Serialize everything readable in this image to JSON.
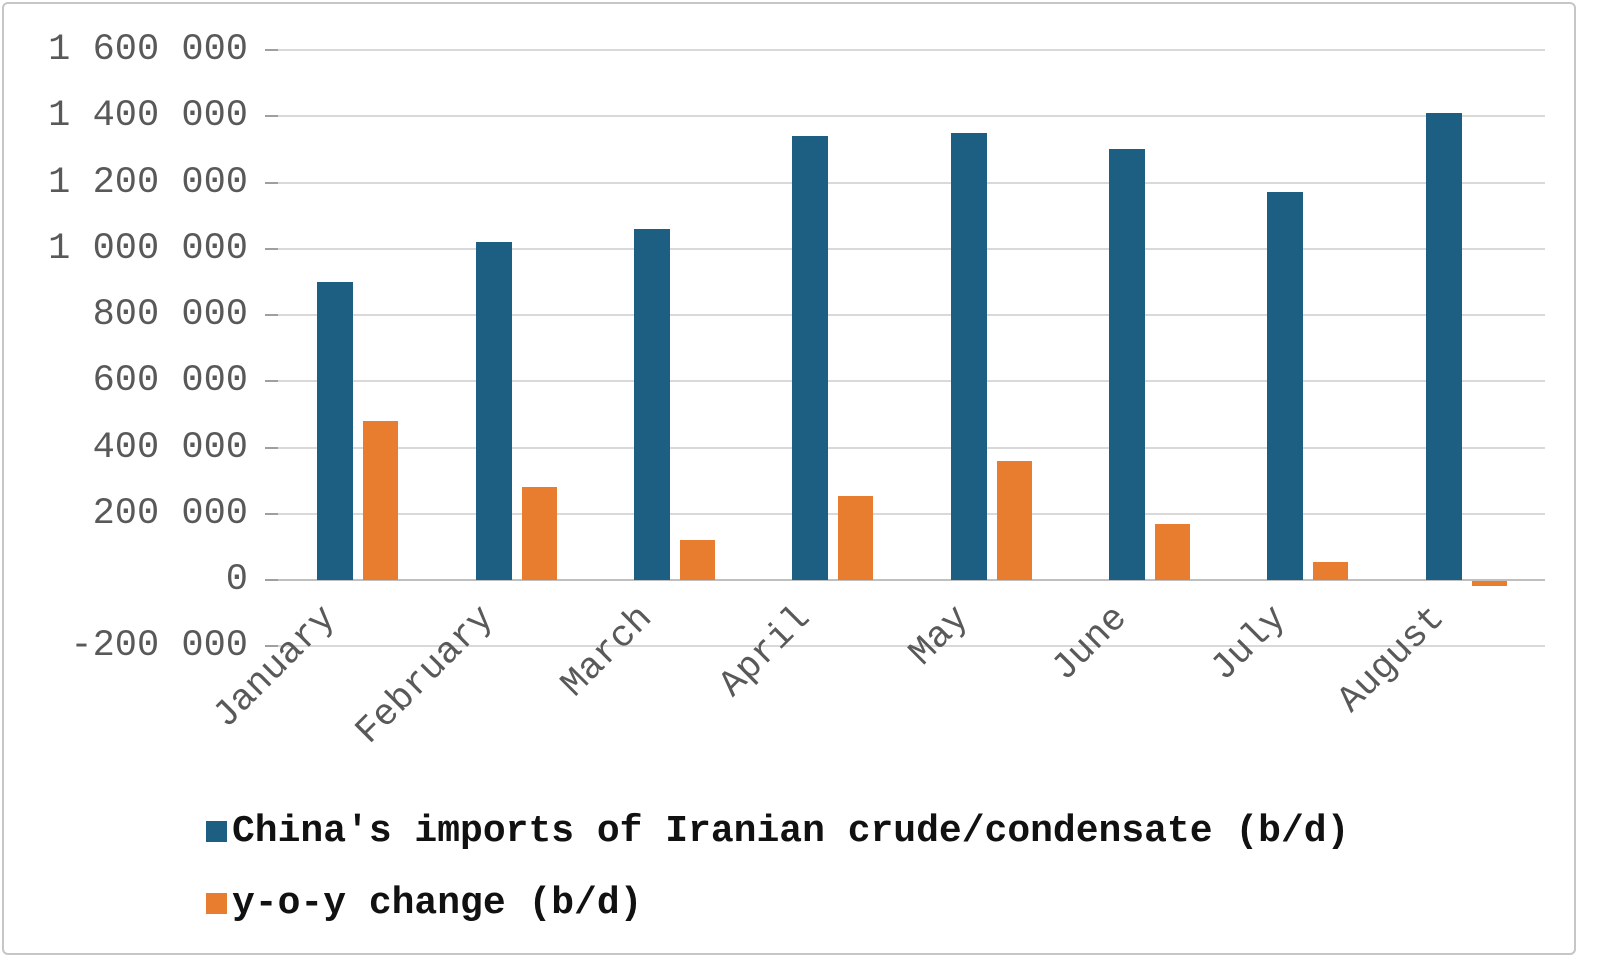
{
  "chart_data": {
    "type": "bar",
    "title": "",
    "xlabel": "",
    "ylabel": "",
    "categories": [
      "January",
      "February",
      "March",
      "April",
      "May",
      "June",
      "July",
      "August"
    ],
    "series": [
      {
        "name": "China's imports of Iranian crude/condensate (b/d)",
        "color": "#1d5f82",
        "values": [
          900000,
          1020000,
          1060000,
          1340000,
          1350000,
          1300000,
          1170000,
          1410000
        ]
      },
      {
        "name": "y-o-y change (b/d)",
        "color": "#e87d2f",
        "values": [
          480000,
          280000,
          120000,
          255000,
          360000,
          170000,
          55000,
          -15000
        ]
      }
    ],
    "ylim": [
      -200000,
      1600000
    ],
    "ytick_step": 200000,
    "ytick_labels": [
      "1 600 000",
      "1 400 000",
      "1 200 000",
      "1 000 000",
      "800 000",
      "600 000",
      "400 000",
      "200 000",
      "0",
      "-200 000"
    ],
    "ytick_values": [
      1600000,
      1400000,
      1200000,
      1000000,
      800000,
      600000,
      400000,
      200000,
      0,
      -200000
    ],
    "grid": true,
    "legend_position": "bottom-left"
  },
  "colors": {
    "gridline": "#d9d9d9",
    "zero_line": "#bfbfbf",
    "axis_text": "#595959",
    "legend_text": "#111111",
    "frame_border": "#c6c6c6",
    "background": "#ffffff"
  }
}
